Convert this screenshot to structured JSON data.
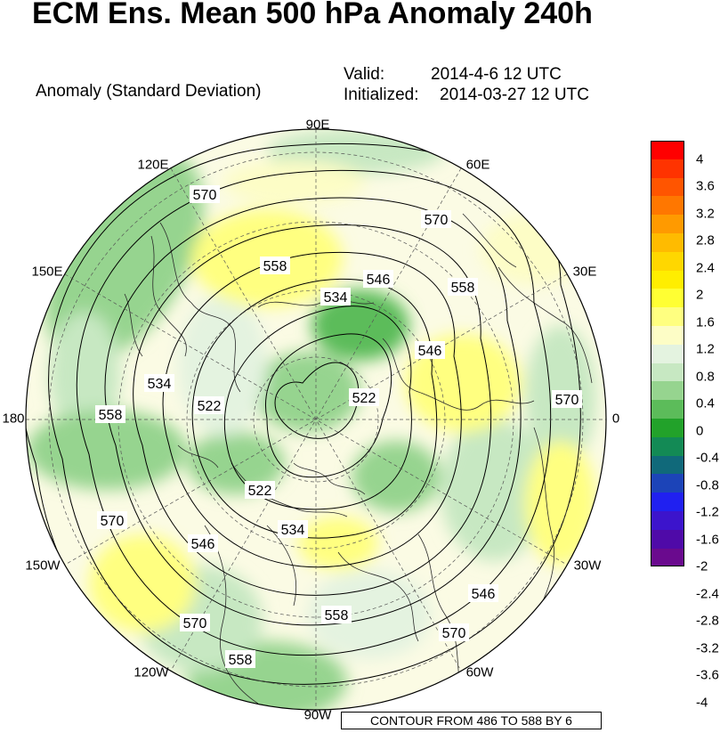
{
  "title": "ECM Ens. Mean 500 hPa Anomaly 240h",
  "subtitle": "Anomaly (Standard Deviation)",
  "valid_label": "Valid:",
  "valid_value": "2014-4-6 12 UTC",
  "initialized_label": "Initialized:",
  "initialized_value": "2014-03-27 12 UTC",
  "contour_note": "CONTOUR FROM 486 TO 588 BY 6",
  "longitude_labels": {
    "lon_90E": "90E",
    "lon_60E": "60E",
    "lon_30E": "30E",
    "lon_0": "0",
    "lon_30W": "30W",
    "lon_60W": "60W",
    "lon_90W": "90W",
    "lon_120W": "120W",
    "lon_150W": "150W",
    "lon_180": "180",
    "lon_150E": "150E",
    "lon_120E": "120E"
  },
  "colorbar": {
    "labels": [
      "4",
      "3.6",
      "3.2",
      "2.8",
      "2.4",
      "2",
      "1.6",
      "1.2",
      "0.8",
      "0.4",
      "0",
      "-0.4",
      "-0.8",
      "-1.2",
      "-1.6",
      "-2",
      "-2.4",
      "-2.8",
      "-3.2",
      "-3.6",
      "-4"
    ],
    "colors": [
      "#ff0000",
      "#ff3300",
      "#ff5500",
      "#ff7700",
      "#ff9a00",
      "#ffbb00",
      "#ffd700",
      "#ffee00",
      "#ffff33",
      "#ffff80",
      "#fdfdc6",
      "#e4f3e0",
      "#c7e8c2",
      "#96d48f",
      "#5cbc5a",
      "#22a22a",
      "#138a55",
      "#10697a",
      "#1c44b8",
      "#2020f0",
      "#3c14cc",
      "#4f0aa8",
      "#6a0a8e"
    ]
  },
  "contour_labels": [
    "570",
    "570",
    "558",
    "546",
    "534",
    "558",
    "546",
    "534",
    "522",
    "522",
    "558",
    "570",
    "522",
    "534",
    "570",
    "546",
    "546",
    "570",
    "558",
    "570",
    "558"
  ],
  "colors": {
    "coast": "#2a2a2a",
    "contour": "#000000",
    "grid": "#444444",
    "background": "#ffffff"
  }
}
